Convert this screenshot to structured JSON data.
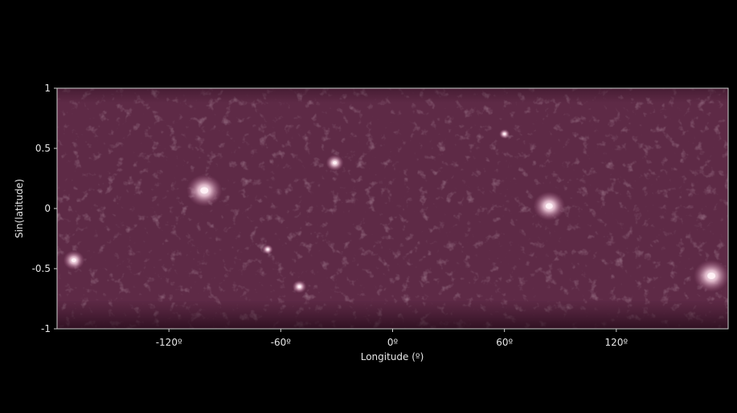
{
  "chart_data": {
    "type": "heatmap",
    "title": "",
    "xlabel": "Longitude (º)",
    "ylabel": "Sin(latitude)",
    "xlim": [
      -180,
      180
    ],
    "ylim": [
      -1,
      1
    ],
    "grid": false,
    "colormap": "dark purple to white",
    "colors": {
      "background": "#000000",
      "field": "#5e2a46",
      "dark": "#3a1428",
      "bright": "#fff0f5",
      "axis": "#cfcfcf"
    },
    "x_ticks": [
      {
        "value": -120,
        "label": "-120º"
      },
      {
        "value": -60,
        "label": "-60º"
      },
      {
        "value": 0,
        "label": "0º"
      },
      {
        "value": 60,
        "label": "60º"
      },
      {
        "value": 120,
        "label": "120º"
      }
    ],
    "y_ticks": [
      {
        "value": 1,
        "label": "1"
      },
      {
        "value": 0.5,
        "label": "0.5"
      },
      {
        "value": 0,
        "label": "0"
      },
      {
        "value": -0.5,
        "label": "-0.5"
      },
      {
        "value": -1,
        "label": "-1"
      }
    ],
    "bright_regions": [
      {
        "lon": -101,
        "sinlat": 0.15,
        "size": 1.0
      },
      {
        "lon": 84,
        "sinlat": 0.02,
        "size": 0.9
      },
      {
        "lon": 171,
        "sinlat": -0.56,
        "size": 1.0
      },
      {
        "lon": -171,
        "sinlat": -0.43,
        "size": 0.6
      },
      {
        "lon": -31,
        "sinlat": 0.38,
        "size": 0.5
      },
      {
        "lon": -50,
        "sinlat": -0.65,
        "size": 0.4
      },
      {
        "lon": 60,
        "sinlat": 0.62,
        "size": 0.3
      },
      {
        "lon": -67,
        "sinlat": -0.34,
        "size": 0.3
      }
    ]
  }
}
